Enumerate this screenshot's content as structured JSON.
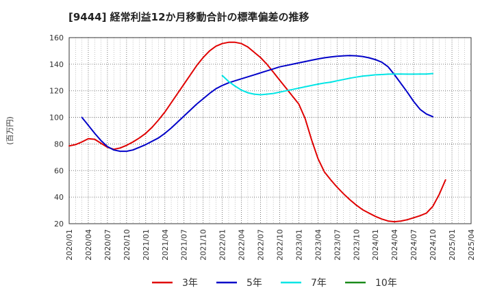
{
  "chart_data": {
    "type": "line",
    "title": "[9444]  経常利益12か月移動合計の標準偏差の推移",
    "ylabel": "(百万円)",
    "xlabel": "",
    "ylim": [
      20,
      160
    ],
    "yticks": [
      20,
      40,
      60,
      80,
      100,
      120,
      140,
      160
    ],
    "xlim": [
      "2020-01",
      "2025-04"
    ],
    "xticks": [
      "2020/01",
      "2020/04",
      "2020/07",
      "2020/10",
      "2021/01",
      "2021/04",
      "2021/07",
      "2021/10",
      "2022/01",
      "2022/04",
      "2022/07",
      "2022/10",
      "2023/01",
      "2023/04",
      "2023/07",
      "2023/10",
      "2024/01",
      "2024/04",
      "2024/07",
      "2024/10",
      "2025/01",
      "2025/04"
    ],
    "grid": true,
    "legend_position": "bottom",
    "series": [
      {
        "name": "3年",
        "color": "#e00000",
        "points": [
          [
            "2020-01",
            78.5
          ],
          [
            "2020-02",
            79.5
          ],
          [
            "2020-03",
            81.5
          ],
          [
            "2020-04",
            84
          ],
          [
            "2020-05",
            83.5
          ],
          [
            "2020-06",
            80.5
          ],
          [
            "2020-07",
            77.5
          ],
          [
            "2020-08",
            76
          ],
          [
            "2020-09",
            77
          ],
          [
            "2020-10",
            79
          ],
          [
            "2020-11",
            81.5
          ],
          [
            "2020-12",
            84.5
          ],
          [
            "2021-01",
            88
          ],
          [
            "2021-02",
            92.5
          ],
          [
            "2021-03",
            98
          ],
          [
            "2021-04",
            104
          ],
          [
            "2021-05",
            111
          ],
          [
            "2021-06",
            118
          ],
          [
            "2021-07",
            125
          ],
          [
            "2021-08",
            132
          ],
          [
            "2021-09",
            139
          ],
          [
            "2021-10",
            145
          ],
          [
            "2021-11",
            150
          ],
          [
            "2021-12",
            153.5
          ],
          [
            "2022-01",
            155.5
          ],
          [
            "2022-02",
            156.5
          ],
          [
            "2022-03",
            156.5
          ],
          [
            "2022-04",
            155.5
          ],
          [
            "2022-05",
            153
          ],
          [
            "2022-06",
            149
          ],
          [
            "2022-07",
            145
          ],
          [
            "2022-08",
            140
          ],
          [
            "2022-09",
            134
          ],
          [
            "2022-10",
            128
          ],
          [
            "2022-11",
            122
          ],
          [
            "2022-12",
            116
          ],
          [
            "2023-01",
            110
          ],
          [
            "2023-02",
            99
          ],
          [
            "2023-03",
            83
          ],
          [
            "2023-04",
            69
          ],
          [
            "2023-05",
            59
          ],
          [
            "2023-06",
            53
          ],
          [
            "2023-07",
            47.5
          ],
          [
            "2023-08",
            42.5
          ],
          [
            "2023-09",
            38
          ],
          [
            "2023-10",
            34
          ],
          [
            "2023-11",
            30.5
          ],
          [
            "2023-12",
            28
          ],
          [
            "2024-01",
            25.5
          ],
          [
            "2024-02",
            23.5
          ],
          [
            "2024-03",
            22
          ],
          [
            "2024-04",
            21.5
          ],
          [
            "2024-05",
            22
          ],
          [
            "2024-06",
            23
          ],
          [
            "2024-07",
            24.5
          ],
          [
            "2024-08",
            26
          ],
          [
            "2024-09",
            28
          ],
          [
            "2024-10",
            33
          ],
          [
            "2024-11",
            42
          ],
          [
            "2024-12",
            53
          ]
        ]
      },
      {
        "name": "5年",
        "color": "#0000c8",
        "points": [
          [
            "2020-03",
            100
          ],
          [
            "2020-04",
            94
          ],
          [
            "2020-05",
            88
          ],
          [
            "2020-06",
            82.5
          ],
          [
            "2020-07",
            78
          ],
          [
            "2020-08",
            75.5
          ],
          [
            "2020-09",
            74.5
          ],
          [
            "2020-10",
            74.5
          ],
          [
            "2020-11",
            75.5
          ],
          [
            "2020-12",
            77.5
          ],
          [
            "2021-01",
            79.5
          ],
          [
            "2021-02",
            82
          ],
          [
            "2021-03",
            84.5
          ],
          [
            "2021-04",
            88
          ],
          [
            "2021-05",
            92
          ],
          [
            "2021-06",
            96.5
          ],
          [
            "2021-07",
            101
          ],
          [
            "2021-08",
            105.5
          ],
          [
            "2021-09",
            110
          ],
          [
            "2021-10",
            114
          ],
          [
            "2021-11",
            118
          ],
          [
            "2021-12",
            121.5
          ],
          [
            "2022-01",
            124
          ],
          [
            "2022-02",
            126
          ],
          [
            "2022-03",
            127.5
          ],
          [
            "2022-04",
            129
          ],
          [
            "2022-05",
            130.5
          ],
          [
            "2022-06",
            132
          ],
          [
            "2022-07",
            133.5
          ],
          [
            "2022-08",
            135
          ],
          [
            "2022-09",
            136.5
          ],
          [
            "2022-10",
            138
          ],
          [
            "2022-11",
            139
          ],
          [
            "2022-12",
            140
          ],
          [
            "2023-01",
            141
          ],
          [
            "2023-02",
            142
          ],
          [
            "2023-03",
            143
          ],
          [
            "2023-04",
            144
          ],
          [
            "2023-05",
            144.8
          ],
          [
            "2023-06",
            145.5
          ],
          [
            "2023-07",
            146
          ],
          [
            "2023-08",
            146.3
          ],
          [
            "2023-09",
            146.5
          ],
          [
            "2023-10",
            146.3
          ],
          [
            "2023-11",
            145.8
          ],
          [
            "2023-12",
            144.8
          ],
          [
            "2024-01",
            143.5
          ],
          [
            "2024-02",
            141.5
          ],
          [
            "2024-03",
            138
          ],
          [
            "2024-04",
            132
          ],
          [
            "2024-05",
            125.5
          ],
          [
            "2024-06",
            119
          ],
          [
            "2024-07",
            112
          ],
          [
            "2024-08",
            106
          ],
          [
            "2024-09",
            102.5
          ],
          [
            "2024-10",
            100.5
          ]
        ]
      },
      {
        "name": "7年",
        "color": "#00e5e5",
        "points": [
          [
            "2022-01",
            131.5
          ],
          [
            "2022-02",
            127
          ],
          [
            "2022-03",
            123.5
          ],
          [
            "2022-04",
            120.5
          ],
          [
            "2022-05",
            118.5
          ],
          [
            "2022-06",
            117.5
          ],
          [
            "2022-07",
            117
          ],
          [
            "2022-08",
            117.5
          ],
          [
            "2022-09",
            118
          ],
          [
            "2022-10",
            119
          ],
          [
            "2022-11",
            120
          ],
          [
            "2022-12",
            121
          ],
          [
            "2023-01",
            122
          ],
          [
            "2023-02",
            123
          ],
          [
            "2023-03",
            124
          ],
          [
            "2023-04",
            125
          ],
          [
            "2023-05",
            125.8
          ],
          [
            "2023-06",
            126.5
          ],
          [
            "2023-07",
            127.5
          ],
          [
            "2023-08",
            128.5
          ],
          [
            "2023-09",
            129.5
          ],
          [
            "2023-10",
            130.3
          ],
          [
            "2023-11",
            131
          ],
          [
            "2023-12",
            131.5
          ],
          [
            "2024-01",
            132
          ],
          [
            "2024-02",
            132.2
          ],
          [
            "2024-03",
            132.5
          ],
          [
            "2024-04",
            132.6
          ],
          [
            "2024-05",
            132.6
          ],
          [
            "2024-06",
            132.5
          ],
          [
            "2024-07",
            132.5
          ],
          [
            "2024-08",
            132.6
          ],
          [
            "2024-09",
            132.6
          ],
          [
            "2024-10",
            133
          ]
        ]
      },
      {
        "name": "10年",
        "color": "#1a8a1a",
        "points": []
      }
    ]
  }
}
